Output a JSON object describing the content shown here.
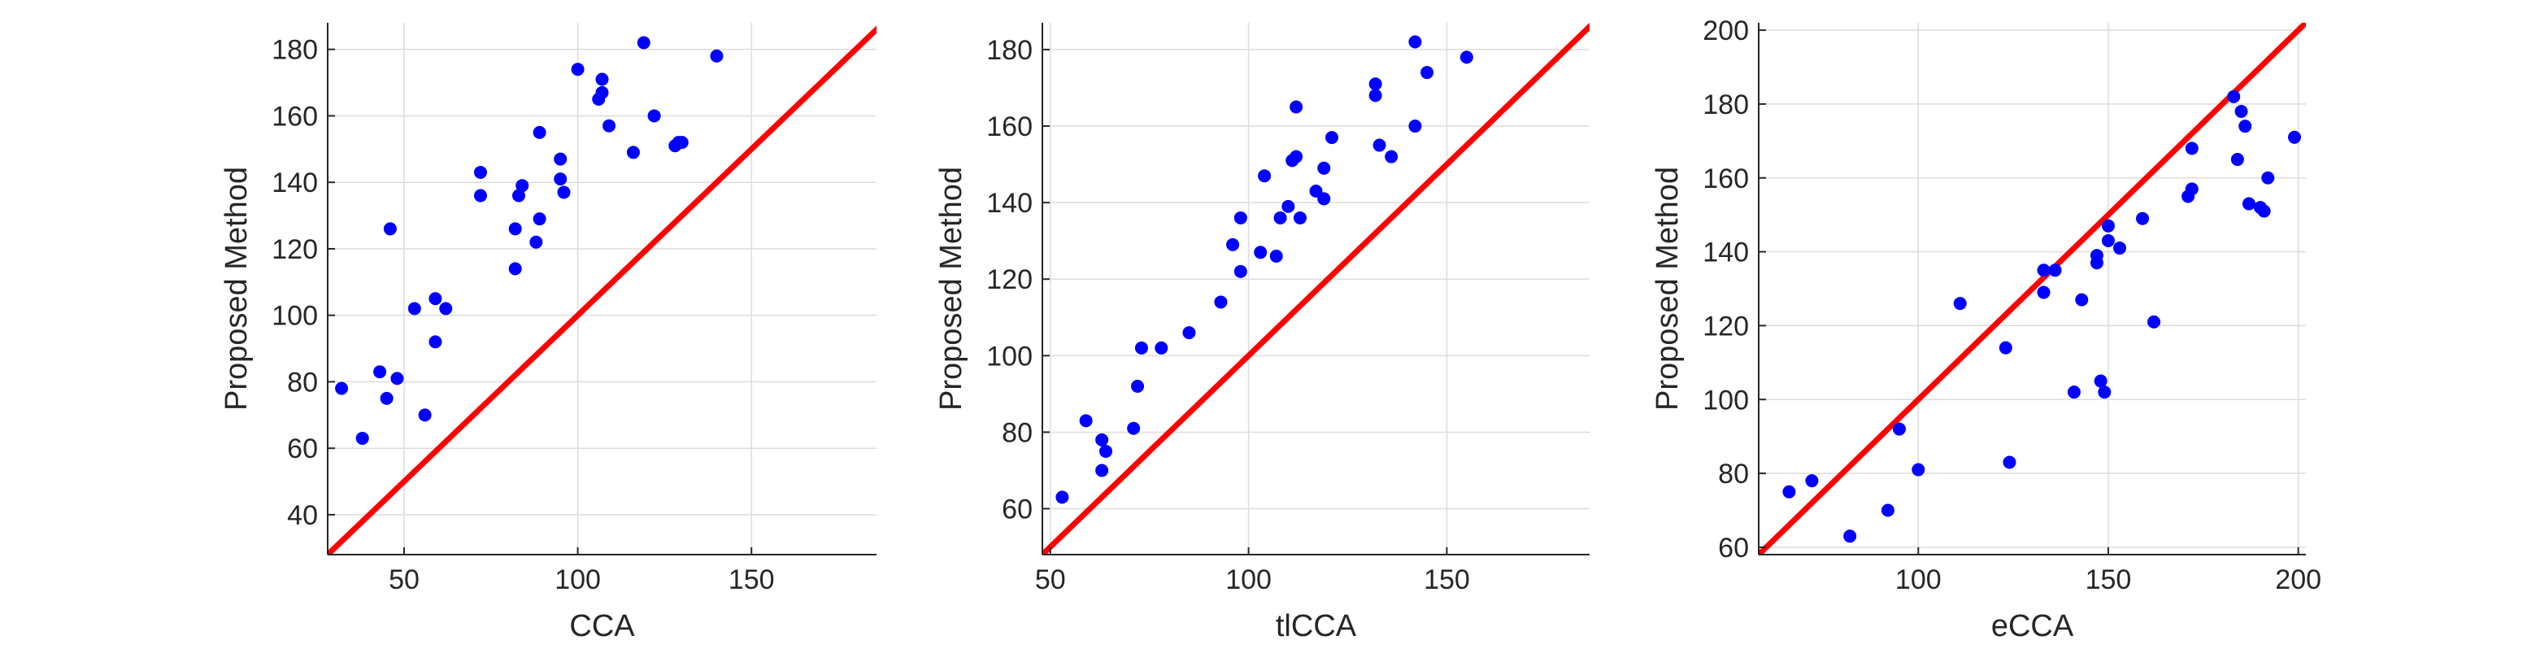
{
  "colors": {
    "points": "#0000ff",
    "diagonal": "#ff0000",
    "axis": "#262626",
    "grid": "#dcdcdc"
  },
  "chart_data": [
    {
      "type": "scatter",
      "xlabel": "CCA",
      "ylabel": "Proposed Method",
      "xlim": [
        28,
        186
      ],
      "ylim": [
        28,
        188
      ],
      "xticks": [
        50,
        100,
        150
      ],
      "yticks": [
        40,
        60,
        80,
        100,
        120,
        140,
        160,
        180
      ],
      "grid": true,
      "reference_line": "y = x",
      "points": [
        [
          32,
          78
        ],
        [
          38,
          63
        ],
        [
          43,
          83
        ],
        [
          45,
          75
        ],
        [
          46,
          126
        ],
        [
          48,
          81
        ],
        [
          53,
          102
        ],
        [
          56,
          70
        ],
        [
          59,
          105
        ],
        [
          59,
          92
        ],
        [
          62,
          102
        ],
        [
          72,
          143
        ],
        [
          72,
          136
        ],
        [
          82,
          114
        ],
        [
          82,
          126
        ],
        [
          83,
          136
        ],
        [
          84,
          139
        ],
        [
          88,
          122
        ],
        [
          89,
          129
        ],
        [
          89,
          155
        ],
        [
          95,
          147
        ],
        [
          95,
          141
        ],
        [
          96,
          137
        ],
        [
          100,
          174
        ],
        [
          106,
          165
        ],
        [
          107,
          171
        ],
        [
          107,
          167
        ],
        [
          109,
          157
        ],
        [
          116,
          149
        ],
        [
          119,
          182
        ],
        [
          122,
          160
        ],
        [
          128,
          151
        ],
        [
          129,
          152
        ],
        [
          130,
          152
        ],
        [
          140,
          178
        ]
      ]
    },
    {
      "type": "scatter",
      "xlabel": "tlCCA",
      "ylabel": "Proposed Method",
      "xlim": [
        48,
        186
      ],
      "ylim": [
        48,
        187
      ],
      "xticks": [
        50,
        100,
        150
      ],
      "yticks": [
        60,
        80,
        100,
        120,
        140,
        160,
        180
      ],
      "grid": true,
      "reference_line": "y = x",
      "points": [
        [
          53,
          63
        ],
        [
          59,
          83
        ],
        [
          63,
          78
        ],
        [
          63,
          70
        ],
        [
          64,
          75
        ],
        [
          71,
          81
        ],
        [
          72,
          92
        ],
        [
          73,
          102
        ],
        [
          78,
          102
        ],
        [
          85,
          106
        ],
        [
          93,
          114
        ],
        [
          96,
          129
        ],
        [
          98,
          136
        ],
        [
          98,
          122
        ],
        [
          103,
          127
        ],
        [
          104,
          147
        ],
        [
          107,
          126
        ],
        [
          108,
          136
        ],
        [
          110,
          139
        ],
        [
          111,
          151
        ],
        [
          112,
          152
        ],
        [
          112,
          165
        ],
        [
          113,
          136
        ],
        [
          117,
          143
        ],
        [
          119,
          149
        ],
        [
          119,
          141
        ],
        [
          121,
          157
        ],
        [
          132,
          168
        ],
        [
          132,
          171
        ],
        [
          133,
          155
        ],
        [
          136,
          152
        ],
        [
          142,
          182
        ],
        [
          142,
          160
        ],
        [
          145,
          174
        ],
        [
          155,
          178
        ]
      ]
    },
    {
      "type": "scatter",
      "xlabel": "eCCA",
      "ylabel": "Proposed Method",
      "xlim": [
        58,
        202
      ],
      "ylim": [
        58,
        202
      ],
      "xticks": [
        100,
        150,
        200
      ],
      "yticks": [
        60,
        80,
        100,
        120,
        140,
        160,
        180,
        200
      ],
      "grid": true,
      "reference_line": "y = x",
      "points": [
        [
          66,
          75
        ],
        [
          72,
          78
        ],
        [
          82,
          63
        ],
        [
          92,
          70
        ],
        [
          95,
          92
        ],
        [
          100,
          81
        ],
        [
          111,
          126
        ],
        [
          123,
          114
        ],
        [
          124,
          83
        ],
        [
          133,
          135
        ],
        [
          133,
          129
        ],
        [
          136,
          135
        ],
        [
          141,
          102
        ],
        [
          143,
          127
        ],
        [
          147,
          137
        ],
        [
          147,
          139
        ],
        [
          148,
          105
        ],
        [
          149,
          102
        ],
        [
          150,
          143
        ],
        [
          150,
          147
        ],
        [
          153,
          141
        ],
        [
          159,
          149
        ],
        [
          162,
          121
        ],
        [
          171,
          155
        ],
        [
          172,
          168
        ],
        [
          172,
          157
        ],
        [
          183,
          182
        ],
        [
          184,
          165
        ],
        [
          185,
          178
        ],
        [
          186,
          174
        ],
        [
          187,
          153
        ],
        [
          190,
          152
        ],
        [
          191,
          151
        ],
        [
          192,
          160
        ],
        [
          199,
          171
        ]
      ]
    }
  ]
}
